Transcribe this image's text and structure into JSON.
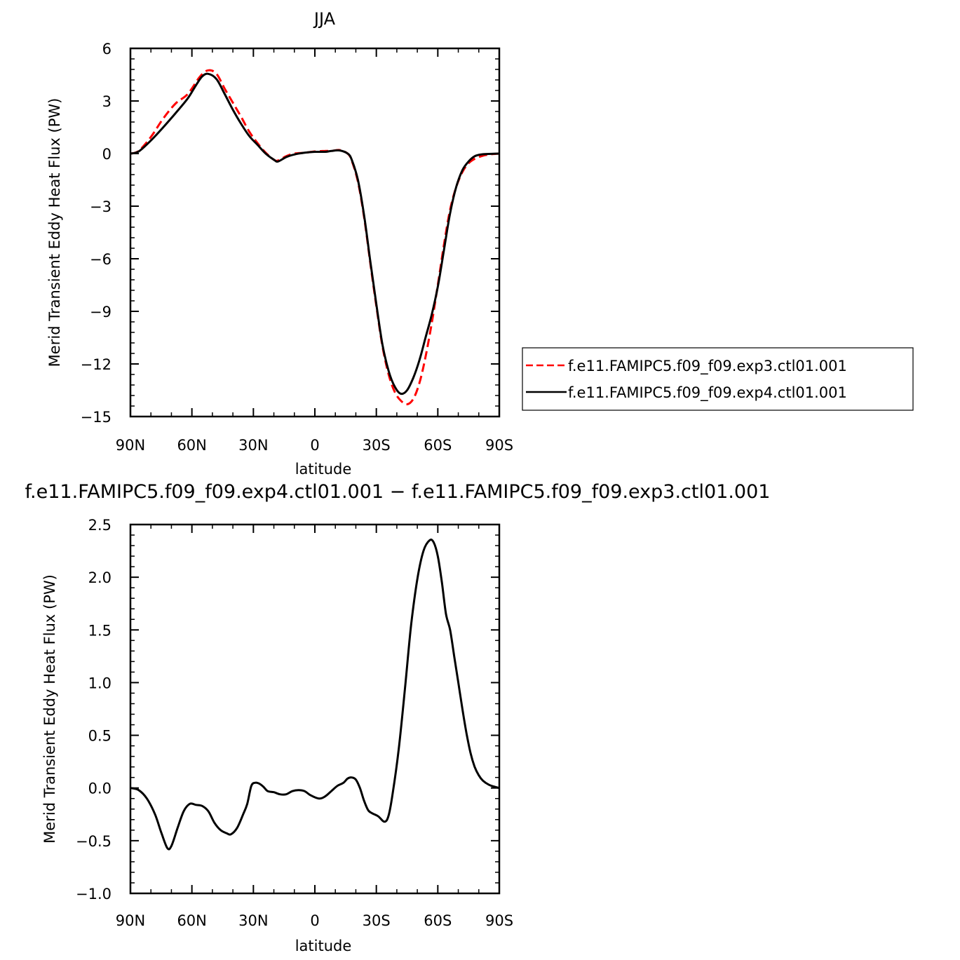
{
  "chart_data": [
    {
      "type": "line",
      "title": "JJA",
      "xlabel": "latitude",
      "ylabel": "Merid Transient Eddy Heat Flux (PW)",
      "xlim": [
        -90,
        90
      ],
      "ylim": [
        -15,
        6
      ],
      "x_ticks": [
        {
          "value": -90,
          "label": "90N"
        },
        {
          "value": -60,
          "label": "60N"
        },
        {
          "value": -30,
          "label": "30N"
        },
        {
          "value": 0,
          "label": "0"
        },
        {
          "value": 30,
          "label": "30S"
        },
        {
          "value": 60,
          "label": "60S"
        },
        {
          "value": 90,
          "label": "90S"
        }
      ],
      "y_ticks": [
        {
          "value": 6,
          "label": "6"
        },
        {
          "value": 3,
          "label": "3"
        },
        {
          "value": 0,
          "label": "0"
        },
        {
          "value": -3,
          "label": "−3"
        },
        {
          "value": -6,
          "label": "−6"
        },
        {
          "value": -9,
          "label": "−9"
        },
        {
          "value": -12,
          "label": "−12"
        },
        {
          "value": -15,
          "label": "−15"
        }
      ],
      "legend_position": "right",
      "series": [
        {
          "name": "f.e11.FAMIPC5.f09_f09.exp3.ctl01.001",
          "color": "#ff0000",
          "dash": "dashed",
          "points": [
            [
              -90,
              0
            ],
            [
              -86,
              0.15
            ],
            [
              -80,
              0.95
            ],
            [
              -74,
              2.0
            ],
            [
              -68,
              2.85
            ],
            [
              -62,
              3.4
            ],
            [
              -56,
              4.4
            ],
            [
              -52,
              4.75
            ],
            [
              -48,
              4.55
            ],
            [
              -44,
              3.7
            ],
            [
              -40,
              2.9
            ],
            [
              -36,
              2.1
            ],
            [
              -32,
              1.25
            ],
            [
              -28,
              0.6
            ],
            [
              -24,
              0.05
            ],
            [
              -20,
              -0.35
            ],
            [
              -18,
              -0.4
            ],
            [
              -14,
              -0.15
            ],
            [
              -10,
              0
            ],
            [
              -5,
              0.05
            ],
            [
              0,
              0.12
            ],
            [
              5,
              0.15
            ],
            [
              8,
              0.15
            ],
            [
              12,
              0.2
            ],
            [
              16,
              0.0
            ],
            [
              18,
              -0.4
            ],
            [
              21,
              -1.6
            ],
            [
              24,
              -3.6
            ],
            [
              27,
              -6.2
            ],
            [
              30,
              -8.7
            ],
            [
              33,
              -11.0
            ],
            [
              36,
              -12.6
            ],
            [
              39,
              -13.6
            ],
            [
              42,
              -14.1
            ],
            [
              45,
              -14.3
            ],
            [
              48,
              -14.0
            ],
            [
              51,
              -13.1
            ],
            [
              54,
              -11.6
            ],
            [
              57,
              -9.7
            ],
            [
              60,
              -7.5
            ],
            [
              63,
              -5.2
            ],
            [
              66,
              -3.2
            ],
            [
              69,
              -1.9
            ],
            [
              72,
              -1.05
            ],
            [
              75,
              -0.55
            ],
            [
              78,
              -0.3
            ],
            [
              82,
              -0.12
            ],
            [
              86,
              -0.04
            ],
            [
              90,
              0
            ]
          ]
        },
        {
          "name": "f.e11.FAMIPC5.f09_f09.exp4.ctl01.001",
          "color": "#000000",
          "dash": "solid",
          "points": [
            [
              -90,
              0
            ],
            [
              -86,
              0.12
            ],
            [
              -80,
              0.75
            ],
            [
              -74,
              1.5
            ],
            [
              -68,
              2.3
            ],
            [
              -62,
              3.15
            ],
            [
              -58,
              3.9
            ],
            [
              -55,
              4.4
            ],
            [
              -52,
              4.55
            ],
            [
              -48,
              4.25
            ],
            [
              -44,
              3.4
            ],
            [
              -40,
              2.5
            ],
            [
              -36,
              1.7
            ],
            [
              -32,
              1.0
            ],
            [
              -28,
              0.5
            ],
            [
              -24,
              0.0
            ],
            [
              -20,
              -0.35
            ],
            [
              -18,
              -0.45
            ],
            [
              -14,
              -0.2
            ],
            [
              -10,
              -0.05
            ],
            [
              -5,
              0.05
            ],
            [
              0,
              0.1
            ],
            [
              5,
              0.1
            ],
            [
              8,
              0.15
            ],
            [
              12,
              0.18
            ],
            [
              16,
              0.0
            ],
            [
              18,
              -0.35
            ],
            [
              21,
              -1.5
            ],
            [
              24,
              -3.5
            ],
            [
              27,
              -6.1
            ],
            [
              30,
              -8.6
            ],
            [
              33,
              -10.9
            ],
            [
              36,
              -12.4
            ],
            [
              39,
              -13.3
            ],
            [
              42,
              -13.7
            ],
            [
              45,
              -13.5
            ],
            [
              48,
              -12.8
            ],
            [
              51,
              -11.8
            ],
            [
              54,
              -10.5
            ],
            [
              57,
              -9.2
            ],
            [
              60,
              -7.6
            ],
            [
              63,
              -5.5
            ],
            [
              66,
              -3.4
            ],
            [
              69,
              -1.9
            ],
            [
              72,
              -0.95
            ],
            [
              75,
              -0.45
            ],
            [
              78,
              -0.15
            ],
            [
              81,
              -0.05
            ],
            [
              85,
              -0.02
            ],
            [
              90,
              0
            ]
          ]
        }
      ]
    },
    {
      "type": "line",
      "title": "f.e11.FAMIPC5.f09_f09.exp4.ctl01.001 − f.e11.FAMIPC5.f09_f09.exp3.ctl01.001",
      "xlabel": "latitude",
      "ylabel": "Merid Transient Eddy Heat Flux (PW)",
      "xlim": [
        -90,
        90
      ],
      "ylim": [
        -1.0,
        2.5
      ],
      "x_ticks": [
        {
          "value": -90,
          "label": "90N"
        },
        {
          "value": -60,
          "label": "60N"
        },
        {
          "value": -30,
          "label": "30N"
        },
        {
          "value": 0,
          "label": "0"
        },
        {
          "value": 30,
          "label": "30S"
        },
        {
          "value": 60,
          "label": "60S"
        },
        {
          "value": 90,
          "label": "90S"
        }
      ],
      "y_ticks": [
        {
          "value": 2.5,
          "label": "2.5"
        },
        {
          "value": 2.0,
          "label": "2.0"
        },
        {
          "value": 1.5,
          "label": "1.5"
        },
        {
          "value": 1.0,
          "label": "1.0"
        },
        {
          "value": 0.5,
          "label": "0.5"
        },
        {
          "value": 0.0,
          "label": "0.0"
        },
        {
          "value": -0.5,
          "label": "−0.5"
        },
        {
          "value": -1.0,
          "label": "−1.0"
        }
      ],
      "series": [
        {
          "color": "#000000",
          "dash": "solid",
          "points": [
            [
              -90,
              0
            ],
            [
              -86,
              -0.02
            ],
            [
              -82,
              -0.1
            ],
            [
              -78,
              -0.25
            ],
            [
              -75,
              -0.42
            ],
            [
              -72,
              -0.57
            ],
            [
              -70,
              -0.55
            ],
            [
              -67,
              -0.38
            ],
            [
              -64,
              -0.22
            ],
            [
              -61,
              -0.15
            ],
            [
              -58,
              -0.16
            ],
            [
              -55,
              -0.17
            ],
            [
              -52,
              -0.22
            ],
            [
              -49,
              -0.33
            ],
            [
              -46,
              -0.4
            ],
            [
              -43,
              -0.43
            ],
            [
              -41,
              -0.44
            ],
            [
              -38,
              -0.38
            ],
            [
              -35,
              -0.25
            ],
            [
              -33,
              -0.15
            ],
            [
              -31,
              0.02
            ],
            [
              -29,
              0.05
            ],
            [
              -27,
              0.04
            ],
            [
              -25,
              0.01
            ],
            [
              -23,
              -0.03
            ],
            [
              -20,
              -0.04
            ],
            [
              -17,
              -0.06
            ],
            [
              -14,
              -0.06
            ],
            [
              -11,
              -0.03
            ],
            [
              -8,
              -0.02
            ],
            [
              -5,
              -0.03
            ],
            [
              -2,
              -0.07
            ],
            [
              2,
              -0.1
            ],
            [
              5,
              -0.08
            ],
            [
              8,
              -0.03
            ],
            [
              11,
              0.02
            ],
            [
              14,
              0.05
            ],
            [
              16,
              0.09
            ],
            [
              18,
              0.1
            ],
            [
              20,
              0.08
            ],
            [
              22,
              0.0
            ],
            [
              24,
              -0.12
            ],
            [
              26,
              -0.21
            ],
            [
              28,
              -0.24
            ],
            [
              31,
              -0.27
            ],
            [
              34,
              -0.32
            ],
            [
              36,
              -0.26
            ],
            [
              38,
              -0.05
            ],
            [
              41,
              0.38
            ],
            [
              44,
              0.95
            ],
            [
              47,
              1.55
            ],
            [
              50,
              1.98
            ],
            [
              53,
              2.25
            ],
            [
              56,
              2.35
            ],
            [
              58,
              2.33
            ],
            [
              60,
              2.2
            ],
            [
              62,
              1.95
            ],
            [
              64,
              1.65
            ],
            [
              66,
              1.5
            ],
            [
              68,
              1.25
            ],
            [
              70,
              1.0
            ],
            [
              72,
              0.75
            ],
            [
              74,
              0.52
            ],
            [
              76,
              0.33
            ],
            [
              78,
              0.2
            ],
            [
              80,
              0.12
            ],
            [
              82,
              0.07
            ],
            [
              85,
              0.03
            ],
            [
              88,
              0.01
            ],
            [
              90,
              0
            ]
          ]
        }
      ]
    }
  ]
}
